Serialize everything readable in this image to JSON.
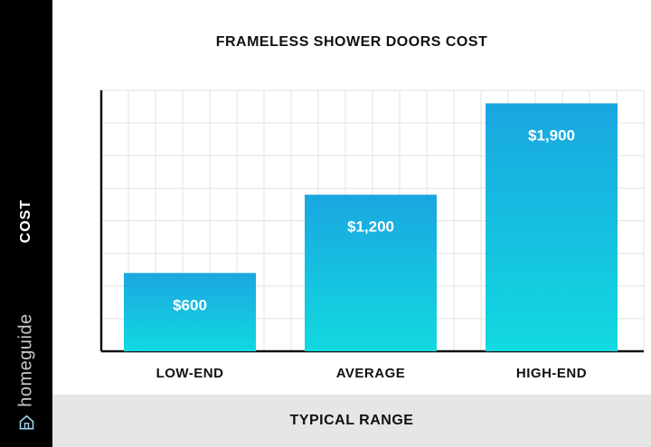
{
  "chart_data": {
    "type": "bar",
    "title": "FRAMELESS SHOWER DOORS COST",
    "xlabel": "TYPICAL RANGE",
    "ylabel": "COST",
    "categories": [
      "LOW-END",
      "AVERAGE",
      "HIGH-END"
    ],
    "values": [
      600,
      1200,
      1900
    ],
    "data_labels": [
      "$600",
      "$1,200",
      "$1,900"
    ],
    "ylim": [
      0,
      2000
    ],
    "grid": true,
    "colors": {
      "bar_top": "#1aa6e0",
      "bar_bottom": "#12d9e0",
      "grid": "#e3e3e3",
      "axis": "#111111"
    }
  },
  "brand": {
    "name": "homeguide",
    "icon": "house-icon"
  }
}
